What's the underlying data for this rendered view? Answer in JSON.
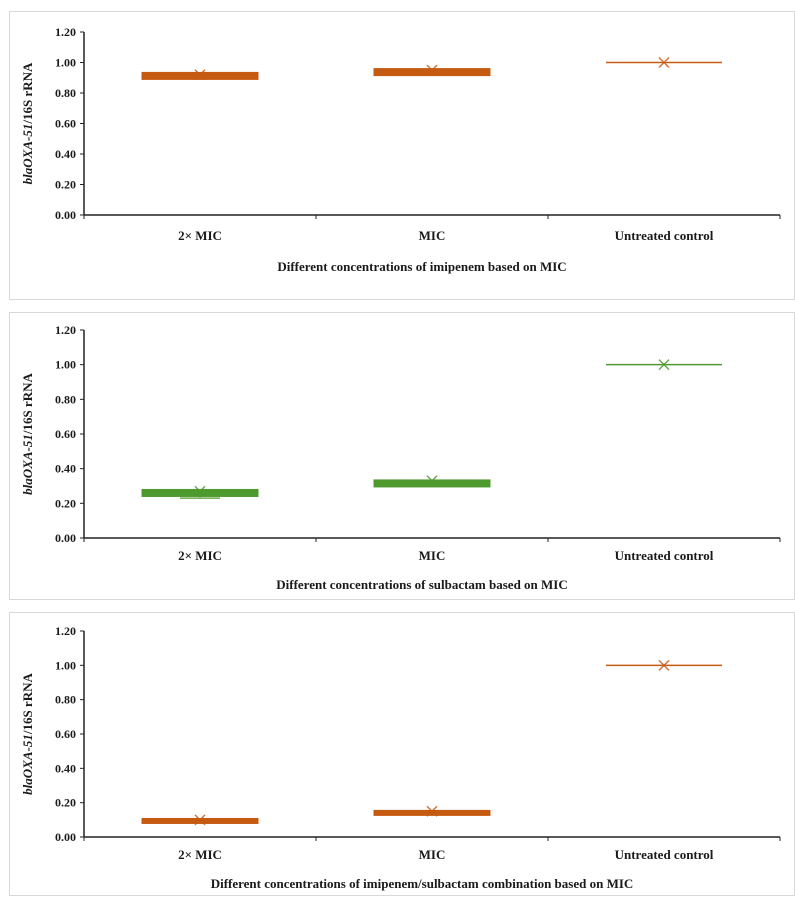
{
  "chart_data": [
    {
      "type": "box",
      "xlabel": "Different concentrations of imipenem based on MIC",
      "ylabel_italic": "blaOXA-51",
      "ylabel_rest": "/16S rRNA",
      "ylim": [
        0,
        1.2
      ],
      "yticks": [
        "0.00",
        "0.20",
        "0.40",
        "0.60",
        "0.80",
        "1.00",
        "1.20"
      ],
      "categories": [
        "2× MIC",
        "MIC",
        "Untreated control"
      ],
      "boxes": [
        {
          "q1": 0.91,
          "q3": 0.935,
          "mean": 0.92
        },
        {
          "q1": 0.94,
          "q3": 0.96,
          "mean": 0.95
        },
        {
          "q1": 1.0,
          "q3": 1.0,
          "mean": 1.0
        }
      ],
      "color": "#c55a11"
    },
    {
      "type": "box",
      "xlabel": "Different concentrations of sulbactam based on MIC",
      "ylabel_italic": "blaOXA-51",
      "ylabel_rest": "/16S rRNA",
      "ylim": [
        0,
        1.2
      ],
      "yticks": [
        "0.00",
        "0.20",
        "0.40",
        "0.60",
        "0.80",
        "1.00",
        "1.20"
      ],
      "categories": [
        "2× MIC",
        "MIC",
        "Untreated control"
      ],
      "boxes": [
        {
          "q1": 0.26,
          "q3": 0.28,
          "mean": 0.27,
          "whisker_low": 0.23
        },
        {
          "q1": 0.325,
          "q3": 0.335,
          "mean": 0.33
        },
        {
          "q1": 1.0,
          "q3": 1.0,
          "mean": 1.0
        }
      ],
      "color": "#4f9a2e"
    },
    {
      "type": "box",
      "xlabel": "Different concentrations of  imipenem/sulbactam combination based on MIC",
      "ylabel_italic": "blaOXA-51",
      "ylabel_rest": "/16S rRNA",
      "ylim": [
        0,
        1.2
      ],
      "yticks": [
        "0.00",
        "0.20",
        "0.40",
        "0.60",
        "0.80",
        "1.00",
        "1.20"
      ],
      "categories": [
        "2× MIC",
        "MIC",
        "Untreated control"
      ],
      "boxes": [
        {
          "q1": 0.1,
          "q3": 0.108,
          "mean": 0.1
        },
        {
          "q1": 0.148,
          "q3": 0.155,
          "mean": 0.15
        },
        {
          "q1": 1.0,
          "q3": 1.0,
          "mean": 1.0
        }
      ],
      "color": "#c55a11"
    }
  ]
}
